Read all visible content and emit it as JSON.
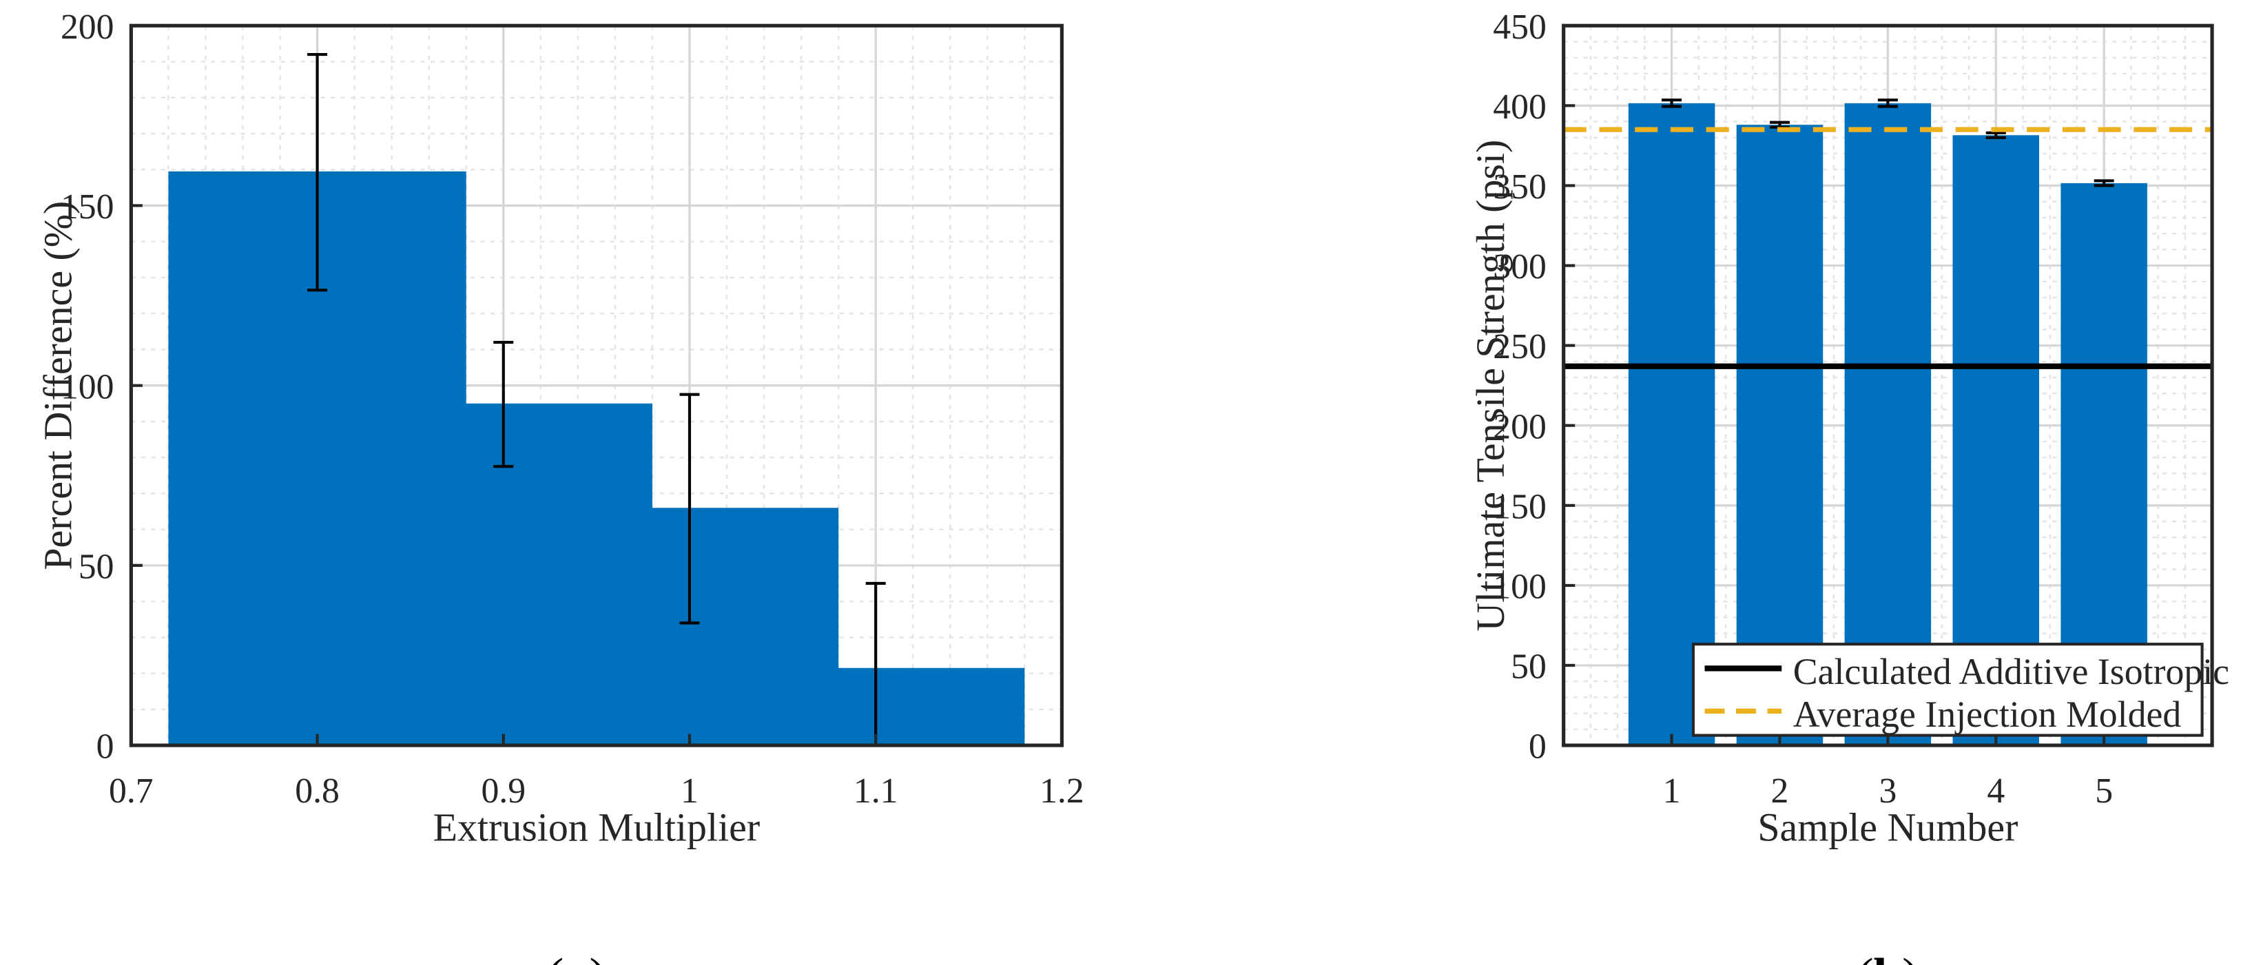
{
  "chart_data": [
    {
      "type": "bar",
      "panel_label": {
        "open": "(",
        "letter": "a",
        "close": ")"
      },
      "xlabel": "Extrusion Multiplier",
      "ylabel": "Percent Difference (%)",
      "x": [
        0.8,
        0.9,
        1,
        1.1
      ],
      "values": [
        159.5,
        95,
        66,
        21.5
      ],
      "error_low": [
        126.5,
        77.5,
        34,
        0
      ],
      "error_high": [
        192,
        112,
        97.5,
        45
      ],
      "xlim": [
        0.7,
        1.2
      ],
      "ylim": [
        0,
        200
      ],
      "xticks": [
        "0.7",
        "0.8",
        "0.9",
        "1",
        "1.1",
        "1.2"
      ],
      "yticks": [
        "0",
        "50",
        "100",
        "150",
        "200"
      ],
      "grid": true,
      "color": "#0072BD"
    },
    {
      "type": "bar",
      "panel_label": {
        "open": "(",
        "letter": "b",
        "close": ")"
      },
      "xlabel": "Sample Number",
      "ylabel": "Ultimate Tensile Strength (psi)",
      "categories": [
        "1",
        "2",
        "3",
        "4",
        "5"
      ],
      "values": [
        401.5,
        388,
        401.5,
        381.5,
        351.5
      ],
      "error_low": [
        399.5,
        386.5,
        399.5,
        380,
        350
      ],
      "error_high": [
        403.5,
        389.5,
        403.5,
        383,
        353
      ],
      "xlim": [
        0,
        6
      ],
      "ylim": [
        0,
        450
      ],
      "yticks": [
        "0",
        "50",
        "100",
        "150",
        "200",
        "250",
        "300",
        "350",
        "400",
        "450"
      ],
      "grid": true,
      "color": "#0072BD",
      "reference_lines": [
        {
          "name": "Calculated Additive Isotropic",
          "value": 237,
          "color": "#000000",
          "style": "solid"
        },
        {
          "name": "Average Injection Molded",
          "value": 385,
          "color": "#EDB120",
          "style": "dashed"
        }
      ],
      "legend_position": "bottom-right"
    }
  ]
}
